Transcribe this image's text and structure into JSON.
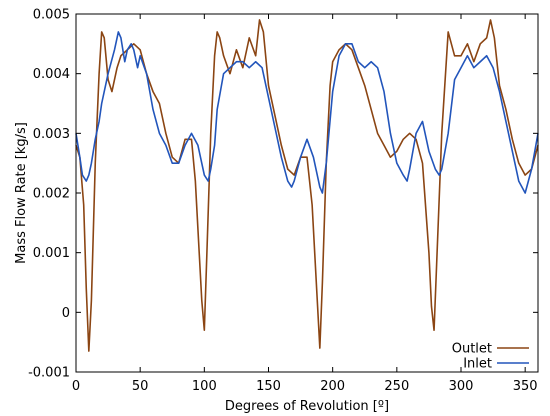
{
  "chart_data": {
    "type": "line",
    "xlabel": "Degrees of Revolution [º]",
    "ylabel": "Mass Flow Rate [kg/s]",
    "xlim": [
      0,
      360
    ],
    "ylim": [
      -0.001,
      0.005
    ],
    "x_ticks": [
      0,
      50,
      100,
      150,
      200,
      250,
      300,
      350
    ],
    "x_tick_labels": [
      "0",
      "50",
      "100",
      "150",
      "200",
      "250",
      "300",
      "350"
    ],
    "y_ticks": [
      -0.001,
      0,
      0.001,
      0.002,
      0.003,
      0.004,
      0.005
    ],
    "y_tick_labels": [
      "-0.001",
      "0",
      "0.001",
      "0.002",
      "0.003",
      "0.004",
      "0.005"
    ],
    "grid": false,
    "legend_position": "bottom-right",
    "series": [
      {
        "name": "Outlet",
        "color": "#8b4513",
        "x": [
          0,
          3,
          6,
          8,
          10,
          12,
          15,
          18,
          20,
          22,
          25,
          28,
          32,
          35,
          40,
          45,
          50,
          55,
          60,
          65,
          70,
          75,
          80,
          85,
          90,
          93,
          96,
          98,
          100,
          102,
          105,
          108,
          110,
          112,
          115,
          120,
          125,
          130,
          135,
          140,
          143,
          146,
          150,
          155,
          160,
          165,
          170,
          175,
          180,
          184,
          188,
          190,
          192,
          195,
          198,
          200,
          205,
          210,
          215,
          220,
          225,
          230,
          235,
          240,
          245,
          250,
          255,
          260,
          265,
          270,
          275,
          277,
          279,
          281,
          285,
          290,
          295,
          300,
          305,
          310,
          315,
          320,
          323,
          326,
          330,
          335,
          340,
          345,
          350,
          355,
          360
        ],
        "y": [
          0.0028,
          0.0026,
          0.0018,
          0.0004,
          -0.00065,
          0.0002,
          0.0025,
          0.004,
          0.0047,
          0.0046,
          0.0039,
          0.0037,
          0.0041,
          0.0043,
          0.0044,
          0.0045,
          0.0044,
          0.004,
          0.0037,
          0.0035,
          0.003,
          0.0026,
          0.0025,
          0.0029,
          0.0029,
          0.0022,
          0.001,
          0.0002,
          -0.0003,
          0.001,
          0.003,
          0.0043,
          0.0047,
          0.0046,
          0.0043,
          0.004,
          0.0044,
          0.0041,
          0.0046,
          0.0043,
          0.0049,
          0.0047,
          0.0038,
          0.0033,
          0.0028,
          0.0024,
          0.0023,
          0.0026,
          0.0026,
          0.0018,
          0.0002,
          -0.0006,
          0.0005,
          0.0025,
          0.0038,
          0.0042,
          0.0044,
          0.0045,
          0.0044,
          0.0041,
          0.0038,
          0.0034,
          0.003,
          0.0028,
          0.0026,
          0.0027,
          0.0029,
          0.003,
          0.0029,
          0.0025,
          0.001,
          0.0001,
          -0.0003,
          0.0008,
          0.003,
          0.0047,
          0.0043,
          0.0043,
          0.0045,
          0.0042,
          0.0045,
          0.0046,
          0.0049,
          0.0046,
          0.0038,
          0.0034,
          0.0029,
          0.0025,
          0.0023,
          0.0024,
          0.0028
        ]
      },
      {
        "name": "Inlet",
        "color": "#2255bb",
        "x": [
          0,
          3,
          5,
          8,
          10,
          12,
          15,
          18,
          20,
          25,
          30,
          33,
          35,
          38,
          40,
          43,
          45,
          48,
          50,
          55,
          60,
          65,
          70,
          75,
          80,
          85,
          90,
          95,
          100,
          103,
          105,
          108,
          110,
          115,
          120,
          125,
          130,
          135,
          140,
          145,
          150,
          155,
          160,
          165,
          168,
          170,
          175,
          180,
          185,
          190,
          192,
          195,
          200,
          205,
          210,
          215,
          220,
          225,
          230,
          235,
          240,
          245,
          250,
          255,
          258,
          260,
          265,
          270,
          275,
          280,
          283,
          285,
          290,
          295,
          300,
          305,
          310,
          315,
          320,
          325,
          330,
          335,
          340,
          345,
          350,
          355,
          360
        ],
        "y": [
          0.003,
          0.0026,
          0.0023,
          0.0022,
          0.0023,
          0.0025,
          0.0029,
          0.0032,
          0.0035,
          0.004,
          0.0044,
          0.0047,
          0.0046,
          0.0042,
          0.0044,
          0.0045,
          0.0044,
          0.0041,
          0.0043,
          0.004,
          0.0034,
          0.003,
          0.0028,
          0.0025,
          0.0025,
          0.0028,
          0.003,
          0.0028,
          0.0023,
          0.0022,
          0.0024,
          0.0028,
          0.0034,
          0.004,
          0.0041,
          0.0042,
          0.0042,
          0.0041,
          0.0042,
          0.0041,
          0.0036,
          0.0031,
          0.0026,
          0.0022,
          0.0021,
          0.0022,
          0.0026,
          0.0029,
          0.0026,
          0.0021,
          0.002,
          0.0025,
          0.0037,
          0.0043,
          0.0045,
          0.0045,
          0.0042,
          0.0041,
          0.0042,
          0.0041,
          0.0037,
          0.003,
          0.0025,
          0.0023,
          0.0022,
          0.0024,
          0.003,
          0.0032,
          0.0027,
          0.0024,
          0.0023,
          0.0024,
          0.003,
          0.0039,
          0.0041,
          0.0043,
          0.0041,
          0.0042,
          0.0043,
          0.0041,
          0.0037,
          0.0032,
          0.0027,
          0.0022,
          0.002,
          0.0024,
          0.003
        ]
      }
    ]
  }
}
